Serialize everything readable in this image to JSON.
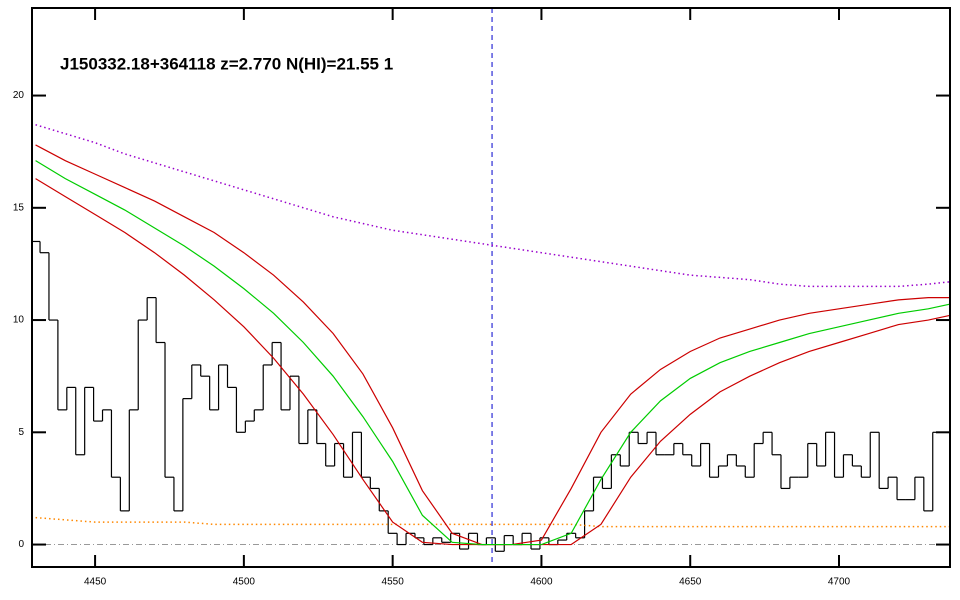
{
  "chart_data": {
    "type": "line",
    "title": "J150332.18+364118 z=2.770 N(HI)=21.55 1",
    "xlim": [
      4428.8,
      4737.3
    ],
    "ylim": [
      -1,
      23.9
    ],
    "xticks": [
      4450,
      4500,
      4550,
      4600,
      4650,
      4700
    ],
    "yticks": [
      0,
      5,
      10,
      15,
      20
    ],
    "vlines": [
      {
        "value": 4583.4,
        "color": "#0000cc"
      }
    ],
    "hlines": [
      {
        "value": 0,
        "color": "#999999"
      }
    ],
    "flux": {
      "color": "#000000",
      "x": [
        4430,
        4433,
        4436,
        4439,
        4442,
        4445,
        4448,
        4451,
        4454,
        4457,
        4460,
        4463,
        4466,
        4469,
        4472,
        4475,
        4478,
        4481,
        4484,
        4487,
        4490,
        4493,
        4496,
        4499,
        4502,
        4505,
        4508,
        4511,
        4514,
        4517,
        4520,
        4523,
        4526,
        4529,
        4532,
        4535,
        4538,
        4541,
        4544,
        4547,
        4550,
        4553,
        4556,
        4559,
        4562,
        4565,
        4568,
        4571,
        4574,
        4577,
        4580,
        4583,
        4586,
        4589,
        4592,
        4595,
        4598,
        4601,
        4604,
        4607,
        4610,
        4613,
        4616,
        4619,
        4622,
        4625,
        4628,
        4631,
        4634,
        4637,
        4640,
        4643,
        4646,
        4649,
        4652,
        4655,
        4658,
        4661,
        4664,
        4667,
        4670,
        4673,
        4676,
        4679,
        4682,
        4685,
        4688,
        4691,
        4694,
        4697,
        4700,
        4703,
        4706,
        4709,
        4712,
        4715,
        4718,
        4721,
        4724,
        4727,
        4730,
        4733,
        4736
      ],
      "values": [
        13.5,
        13,
        10,
        6,
        7,
        4,
        7,
        5.5,
        6,
        3,
        1.5,
        6,
        10,
        11,
        9,
        3,
        1.5,
        6.5,
        8,
        7.5,
        6,
        8,
        7,
        5,
        5.5,
        6,
        8,
        9,
        6,
        7.5,
        4.5,
        6,
        4.5,
        3.5,
        4.5,
        3,
        5,
        3,
        2.5,
        1.5,
        0.5,
        0,
        0.5,
        0.3,
        0,
        0.3,
        0.1,
        0.5,
        -0.2,
        0.5,
        0,
        0.3,
        -0.3,
        0.4,
        0,
        0.5,
        -0.2,
        0.3,
        0,
        0.2,
        0.5,
        0.3,
        1.5,
        3,
        2.5,
        4,
        3.5,
        5,
        4.5,
        5,
        4,
        4,
        4.5,
        4,
        3.5,
        4.5,
        3,
        3.5,
        4,
        3.5,
        3,
        4.5,
        5,
        4,
        2.5,
        3,
        3,
        4.5,
        3.5,
        5,
        3,
        4,
        3.5,
        3,
        5,
        2.5,
        3,
        2,
        2,
        3,
        1.5,
        5,
        5
      ]
    },
    "series": [
      {
        "color": "#9900cc",
        "style": "dotted",
        "x": [
          4430,
          4440,
          4450,
          4460,
          4470,
          4480,
          4490,
          4500,
          4510,
          4520,
          4530,
          4540,
          4550,
          4560,
          4570,
          4580,
          4590,
          4600,
          4610,
          4620,
          4630,
          4640,
          4650,
          4660,
          4670,
          4680,
          4690,
          4700,
          4710,
          4720,
          4730,
          4737
        ],
        "values": [
          18.7,
          18.3,
          17.9,
          17.4,
          17.0,
          16.6,
          16.2,
          15.8,
          15.4,
          15.0,
          14.6,
          14.3,
          14.0,
          13.8,
          13.6,
          13.4,
          13.2,
          13.0,
          12.8,
          12.6,
          12.4,
          12.2,
          12.0,
          11.9,
          11.8,
          11.6,
          11.5,
          11.5,
          11.5,
          11.5,
          11.6,
          11.7
        ]
      },
      {
        "color": "#ff8800",
        "style": "dotted",
        "x": [
          4430,
          4440,
          4450,
          4460,
          4470,
          4480,
          4490,
          4500,
          4510,
          4520,
          4530,
          4540,
          4550,
          4560,
          4570,
          4580,
          4590,
          4600,
          4610,
          4620,
          4630,
          4640,
          4650,
          4660,
          4670,
          4680,
          4690,
          4700,
          4710,
          4720,
          4730,
          4737
        ],
        "values": [
          1.2,
          1.1,
          1.0,
          1.0,
          1.0,
          1.0,
          0.9,
          0.9,
          0.9,
          0.9,
          0.9,
          0.9,
          0.9,
          0.9,
          0.9,
          0.9,
          0.9,
          0.9,
          0.9,
          0.8,
          0.8,
          0.8,
          0.8,
          0.8,
          0.8,
          0.8,
          0.8,
          0.8,
          0.8,
          0.8,
          0.8,
          0.8
        ]
      },
      {
        "color": "#cc0000",
        "style": "solid",
        "x": [
          4430,
          4440,
          4450,
          4460,
          4470,
          4480,
          4490,
          4500,
          4510,
          4520,
          4530,
          4540,
          4550,
          4560,
          4570,
          4580,
          4590,
          4600,
          4610,
          4620,
          4630,
          4640,
          4650,
          4660,
          4670,
          4680,
          4690,
          4700,
          4710,
          4720,
          4730,
          4737
        ],
        "values": [
          17.8,
          17.1,
          16.5,
          15.9,
          15.3,
          14.6,
          13.9,
          13.0,
          12.0,
          10.8,
          9.4,
          7.6,
          5.2,
          2.4,
          0.5,
          0,
          0,
          0.2,
          2.5,
          5.0,
          6.7,
          7.8,
          8.6,
          9.2,
          9.6,
          10.0,
          10.3,
          10.5,
          10.7,
          10.9,
          11.0,
          11.0
        ]
      },
      {
        "color": "#cc0000",
        "style": "solid",
        "x": [
          4430,
          4440,
          4450,
          4460,
          4470,
          4480,
          4490,
          4500,
          4510,
          4520,
          4530,
          4540,
          4550,
          4560,
          4570,
          4580,
          4590,
          4600,
          4610,
          4620,
          4630,
          4640,
          4650,
          4660,
          4670,
          4680,
          4690,
          4700,
          4710,
          4720,
          4730,
          4737
        ],
        "values": [
          16.3,
          15.5,
          14.7,
          13.9,
          13.0,
          12.0,
          10.9,
          9.7,
          8.3,
          6.7,
          4.9,
          2.9,
          1.0,
          0.1,
          0,
          0,
          0,
          0,
          0,
          0.9,
          3.0,
          4.6,
          5.8,
          6.8,
          7.5,
          8.1,
          8.6,
          9.0,
          9.4,
          9.8,
          10.0,
          10.2
        ]
      },
      {
        "color": "#00cc00",
        "style": "solid",
        "x": [
          4430,
          4440,
          4450,
          4460,
          4470,
          4480,
          4490,
          4500,
          4510,
          4520,
          4530,
          4540,
          4550,
          4560,
          4570,
          4580,
          4590,
          4600,
          4610,
          4620,
          4630,
          4640,
          4650,
          4660,
          4670,
          4680,
          4690,
          4700,
          4710,
          4720,
          4730,
          4737
        ],
        "values": [
          17.1,
          16.3,
          15.6,
          14.9,
          14.1,
          13.3,
          12.4,
          11.4,
          10.3,
          9.0,
          7.5,
          5.7,
          3.7,
          1.3,
          0.1,
          0,
          0,
          0,
          0.5,
          2.9,
          5.0,
          6.4,
          7.4,
          8.1,
          8.6,
          9.0,
          9.4,
          9.7,
          10.0,
          10.3,
          10.5,
          10.7
        ]
      }
    ]
  }
}
